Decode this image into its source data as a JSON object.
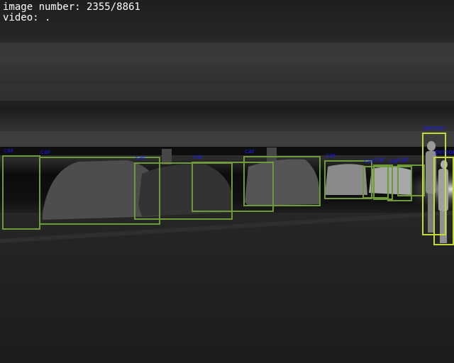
{
  "overlay": {
    "image_number_line": "image number: 2355/8861",
    "video_line": "video: ."
  },
  "detections": [
    {
      "label": "car"
    },
    {
      "label": "car"
    },
    {
      "label": "car"
    },
    {
      "label": "car"
    },
    {
      "label": "car"
    },
    {
      "label": "car"
    },
    {
      "label": "car"
    },
    {
      "label": "car"
    },
    {
      "label": "car"
    },
    {
      "label": "car"
    },
    {
      "label": "person"
    },
    {
      "label": "person"
    }
  ],
  "colors": {
    "car_box": "#6e9a3a",
    "person_box": "#c5d836",
    "label_text": "#1a1aff",
    "hud_text": "#ffffff"
  }
}
